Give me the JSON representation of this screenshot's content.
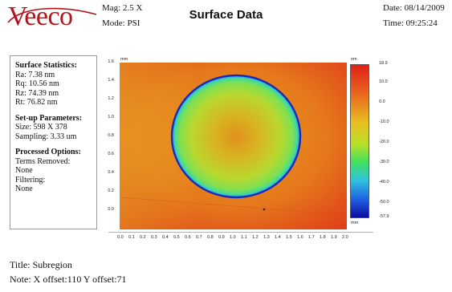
{
  "header": {
    "logo_text": "Veeco",
    "mag_label": "Mag:",
    "mag_value": "2.5 X",
    "mode_label": "Mode:",
    "mode_value": "PSI",
    "title": "Surface Data",
    "date_label": "Date:",
    "date_value": "08/14/2009",
    "time_label": "Time:",
    "time_value": "09:25:24"
  },
  "stats": {
    "surface_title": "Surface Statistics:",
    "ra": "Ra:  7.38 nm",
    "rq": "Rq:  10.56 nm",
    "rz": "Rz:  74.39 nm",
    "rt": "Rt:  76.82 nm",
    "setup_title": "Set-up Parameters:",
    "size": "Size:  598 X 378",
    "sampling": "Sampling:  3.33 um",
    "processed_title": "Processed Options:",
    "terms_label": "Terms Removed:",
    "terms_value": "None",
    "filtering_label": "Filtering:",
    "filtering_value": "None"
  },
  "plot": {
    "y_unit": "mm",
    "x_unit": "mm",
    "colorbar_unit": "nm",
    "y_ticks": [
      "1.6",
      "1.4",
      "1.2",
      "1.0",
      "0.8",
      "0.6",
      "0.4",
      "0.2",
      "0.0"
    ],
    "x_ticks": [
      "0.0",
      "0.1",
      "0.2",
      "0.3",
      "0.4",
      "0.5",
      "0.6",
      "0.7",
      "0.8",
      "0.9",
      "1.0",
      "1.1",
      "1.2",
      "1.3",
      "1.4",
      "1.5",
      "1.6",
      "1.7",
      "1.8",
      "1.9",
      "2.0"
    ],
    "colorbar_ticks": [
      "18.9",
      "10.0",
      "0.0",
      "-10.0",
      "-20.0",
      "-30.0",
      "-40.0",
      "-50.0",
      "-57.9"
    ],
    "colors": {
      "high": "#e0281c",
      "mid": "#e8d020",
      "low_mid": "#30e060",
      "low": "#1010b0"
    }
  },
  "footer": {
    "title_line": "Title:  Subregion",
    "note_line": "Note:  X offset:110   Y offset:71"
  }
}
